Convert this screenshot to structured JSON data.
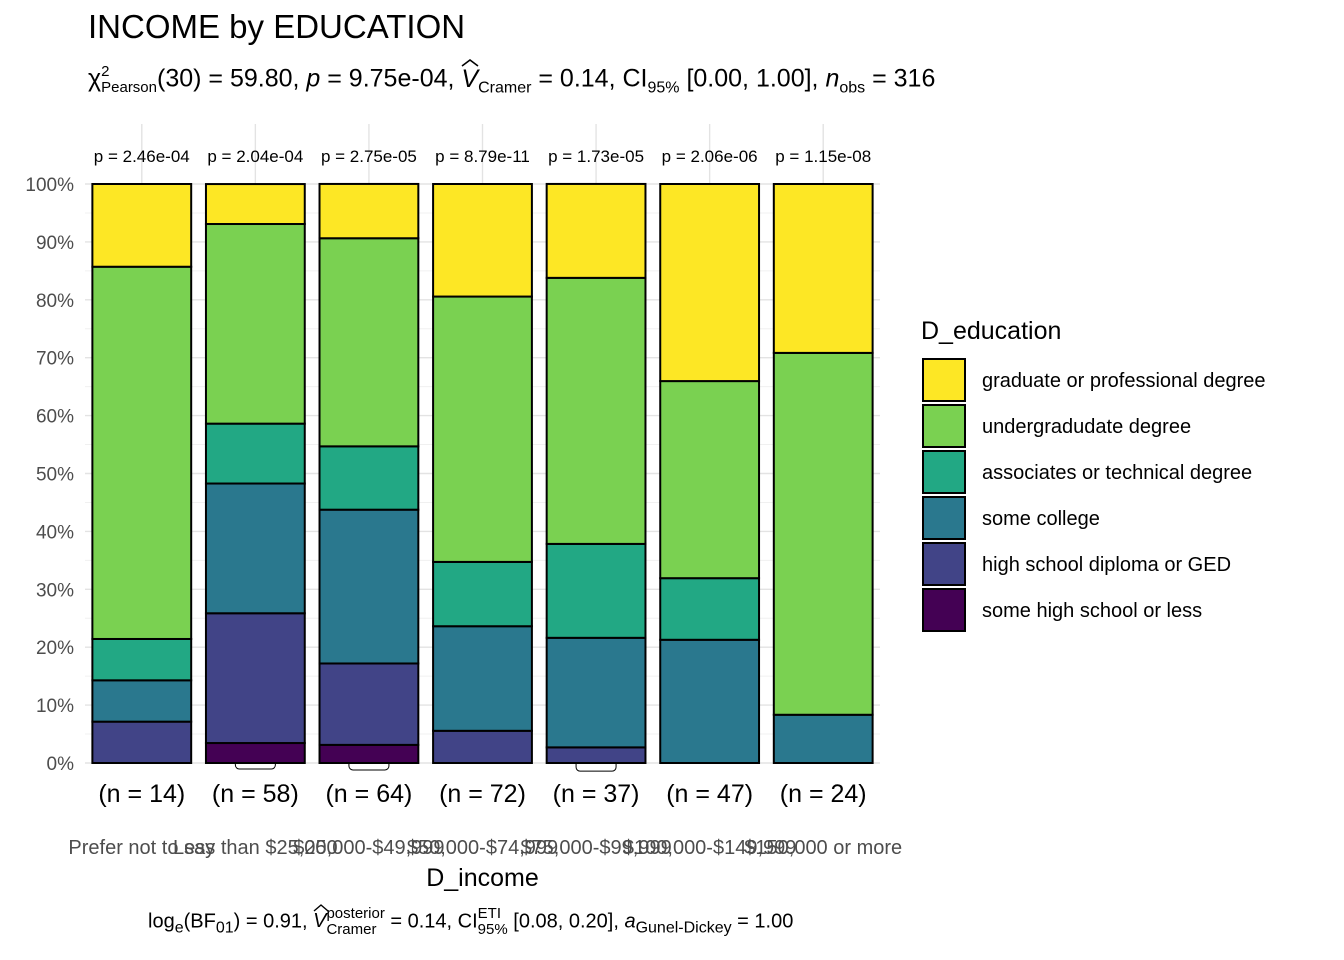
{
  "header": {
    "title": "INCOME by EDUCATION",
    "subtitle": {
      "chi_label": "χ",
      "chi_sup": "2",
      "chi_sub": "Pearson",
      "chi_value": "(30) = 59.80, ",
      "p_label": "p",
      "p_value": " = 9.75e-04, ",
      "v_label": "V",
      "v_sub": "Cramer",
      "v_value": " = 0.14, CI",
      "ci_sub": "95%",
      "ci_value": " [0.00, 1.00], ",
      "n_label": "n",
      "n_sub": "obs",
      "n_value": " = 316"
    }
  },
  "caption": {
    "bf_label": "log",
    "bf_sub_e": "e",
    "bf_paren": "(BF",
    "bf_sub": "01",
    "bf_value": ") = 0.91, ",
    "v_label": "V",
    "v_sup": "posterior",
    "v_sub": "Cramer",
    "v_value": " = 0.14, CI",
    "ci_sup": "ETI",
    "ci_sub": "95%",
    "ci_value": " [0.08, 0.20], ",
    "a_label": "a",
    "a_sub": "Gunel-Dickey",
    "a_value": " = 1.00"
  },
  "chart_data": {
    "type": "bar",
    "stacked": "percent",
    "xlabel": "D_income",
    "ylabel": "",
    "ylim": [
      0,
      100
    ],
    "yticks": [
      "0%",
      "10%",
      "20%",
      "30%",
      "40%",
      "50%",
      "60%",
      "70%",
      "80%",
      "90%",
      "100%"
    ],
    "categories": [
      "Prefer not to say",
      "Less than $25,000",
      "$25,000-$49,999",
      "$50,000-$74,999",
      "$75,000-$99,999",
      "$100,000-$149,999",
      "$150,000 or more"
    ],
    "counts": [
      "(n = 14)",
      "(n = 58)",
      "(n = 64)",
      "(n = 72)",
      "(n = 37)",
      "(n = 47)",
      "(n = 24)"
    ],
    "p_labels": [
      "p = 2.46e-04",
      "p = 2.04e-04",
      "p = 2.75e-05",
      "p = 8.79e-11",
      "p = 1.73e-05",
      "p = 2.06e-06",
      "p = 1.15e-08"
    ],
    "legend": {
      "title": "D_education",
      "position": "right",
      "entries": [
        "graduate or professional degree",
        "undergradudate degree",
        "associates or technical degree",
        "some college",
        "high school diploma or GED",
        "some high school or less"
      ]
    },
    "colors": {
      "some high school or less": "#440154",
      "high school diploma or GED": "#414487",
      "some college": "#2A788E",
      "associates or technical degree": "#22A884",
      "undergradudate degree": "#7AD151",
      "graduate or professional degree": "#FDE725"
    },
    "series": [
      {
        "name": "some high school or less",
        "values": [
          0,
          3.45,
          3.13,
          0,
          0,
          0,
          0
        ],
        "labels": [
          "",
          "3%",
          "3%",
          "",
          "",
          "",
          ""
        ]
      },
      {
        "name": "high school diploma or GED",
        "values": [
          7.14,
          22.41,
          14.06,
          5.56,
          2.7,
          0,
          0
        ],
        "labels": [
          "7%",
          "22%",
          "14%",
          "6%",
          "3%",
          "",
          ""
        ]
      },
      {
        "name": "some college",
        "values": [
          7.14,
          22.41,
          26.56,
          18.06,
          18.92,
          21.28,
          8.33
        ],
        "labels": [
          "7%",
          "22%",
          "27%",
          "18%",
          "19%",
          "21%",
          "8%"
        ]
      },
      {
        "name": "associates or technical degree",
        "values": [
          7.14,
          10.34,
          10.94,
          11.11,
          16.22,
          10.64,
          0
        ],
        "labels": [
          "7%",
          "10%",
          "11%",
          "11%",
          "16%",
          "11%",
          ""
        ]
      },
      {
        "name": "undergradudate degree",
        "values": [
          64.29,
          34.48,
          35.94,
          45.83,
          45.95,
          34.04,
          62.5
        ],
        "labels": [
          "64%",
          "34%",
          "36%",
          "46%",
          "46%",
          "34%",
          "62%"
        ]
      },
      {
        "name": "graduate or professional degree",
        "values": [
          14.29,
          6.9,
          9.38,
          19.44,
          16.22,
          34.04,
          29.17
        ],
        "labels": [
          "14%",
          "7%",
          "9%",
          "19%",
          "16%",
          "34%",
          "29%"
        ]
      }
    ]
  }
}
